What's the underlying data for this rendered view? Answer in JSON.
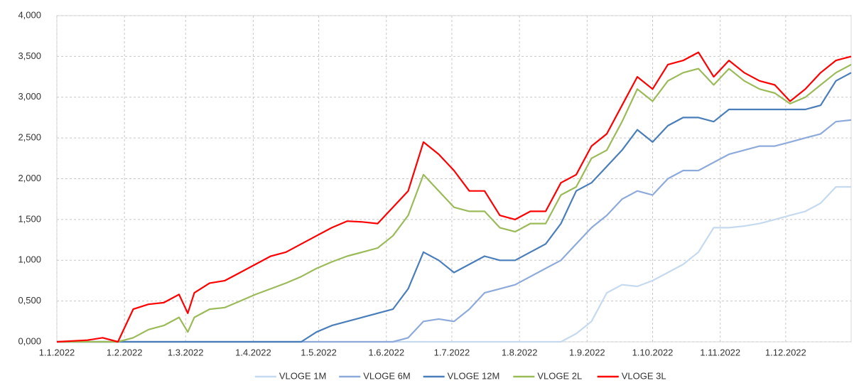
{
  "chart_data": {
    "type": "line",
    "x": [
      0,
      14,
      21,
      28,
      35,
      42,
      49,
      56,
      60,
      63,
      70,
      77,
      84,
      91,
      98,
      105,
      112,
      119,
      126,
      133,
      140,
      147,
      154,
      161,
      168,
      175,
      182,
      189,
      196,
      203,
      210,
      217,
      224,
      231,
      238,
      245,
      252,
      259,
      266,
      273,
      280,
      287,
      294,
      301,
      308,
      315,
      322,
      329,
      336,
      343,
      350,
      357,
      364
    ],
    "xlim": [
      0,
      364
    ],
    "xticks": [
      {
        "value": 0,
        "label": "1.1.2022"
      },
      {
        "value": 31,
        "label": "1.2.2022"
      },
      {
        "value": 59,
        "label": "1.3.2022"
      },
      {
        "value": 90,
        "label": "1.4.2022"
      },
      {
        "value": 120,
        "label": "1.5.2022"
      },
      {
        "value": 151,
        "label": "1.6.2022"
      },
      {
        "value": 181,
        "label": "1.7.2022"
      },
      {
        "value": 212,
        "label": "1.8.2022"
      },
      {
        "value": 243,
        "label": "1.9.2022"
      },
      {
        "value": 273,
        "label": "1.10.2022"
      },
      {
        "value": 304,
        "label": "1.11.2022"
      },
      {
        "value": 334,
        "label": "1.12.2022"
      }
    ],
    "ylim": [
      0,
      4
    ],
    "yticks": [
      {
        "value": 0,
        "label": "0,000"
      },
      {
        "value": 0.5,
        "label": "0,500"
      },
      {
        "value": 1,
        "label": "1,000"
      },
      {
        "value": 1.5,
        "label": "1,500"
      },
      {
        "value": 2,
        "label": "2,000"
      },
      {
        "value": 2.5,
        "label": "2,500"
      },
      {
        "value": 3,
        "label": "3,000"
      },
      {
        "value": 3.5,
        "label": "3,500"
      },
      {
        "value": 4,
        "label": "4,000"
      }
    ],
    "grid": true,
    "legend": "bottom",
    "series": [
      {
        "name": "VLOGE 1M",
        "color": "#c5d9ef",
        "values": [
          0,
          0,
          0,
          0,
          0,
          0,
          0,
          0,
          0,
          0,
          0,
          0,
          0,
          0,
          0,
          0,
          0,
          0,
          0,
          0,
          0,
          0,
          0,
          0,
          0,
          0,
          0,
          0,
          0,
          0,
          0,
          0,
          0,
          0,
          0.1,
          0.25,
          0.6,
          0.7,
          0.68,
          0.75,
          0.85,
          0.95,
          1.1,
          1.4,
          1.4,
          1.42,
          1.45,
          1.5,
          1.55,
          1.6,
          1.7,
          1.9,
          1.9
        ]
      },
      {
        "name": "VLOGE 6M",
        "color": "#8eaadb",
        "values": [
          0,
          0,
          0,
          0,
          0,
          0,
          0,
          0,
          0,
          0,
          0,
          0,
          0,
          0,
          0,
          0,
          0,
          0,
          0,
          0,
          0,
          0,
          0,
          0.05,
          0.25,
          0.28,
          0.25,
          0.4,
          0.6,
          0.65,
          0.7,
          0.8,
          0.9,
          1.0,
          1.2,
          1.4,
          1.55,
          1.75,
          1.85,
          1.8,
          2.0,
          2.1,
          2.1,
          2.2,
          2.3,
          2.35,
          2.4,
          2.4,
          2.45,
          2.5,
          2.55,
          2.7,
          2.72
        ]
      },
      {
        "name": "VLOGE 12M",
        "color": "#4a7ebb",
        "values": [
          0,
          0,
          0,
          0,
          0,
          0,
          0,
          0,
          0,
          0,
          0,
          0,
          0,
          0,
          0,
          0,
          0,
          0.12,
          0.2,
          0.25,
          0.3,
          0.35,
          0.4,
          0.65,
          1.1,
          1.0,
          0.85,
          0.95,
          1.05,
          1.0,
          1.0,
          1.1,
          1.2,
          1.45,
          1.85,
          1.95,
          2.15,
          2.35,
          2.6,
          2.45,
          2.65,
          2.75,
          2.75,
          2.7,
          2.85,
          2.85,
          2.85,
          2.85,
          2.85,
          2.85,
          2.9,
          3.2,
          3.3
        ]
      },
      {
        "name": "VLOGE 2L",
        "color": "#9bbb59",
        "values": [
          0,
          0,
          0,
          0,
          0.05,
          0.15,
          0.2,
          0.3,
          0.12,
          0.3,
          0.4,
          0.42,
          0.5,
          0.58,
          0.65,
          0.72,
          0.8,
          0.9,
          0.98,
          1.05,
          1.1,
          1.15,
          1.3,
          1.55,
          2.05,
          1.85,
          1.65,
          1.6,
          1.6,
          1.4,
          1.35,
          1.45,
          1.45,
          1.8,
          1.9,
          2.25,
          2.35,
          2.7,
          3.1,
          2.95,
          3.2,
          3.3,
          3.35,
          3.15,
          3.35,
          3.2,
          3.1,
          3.05,
          2.92,
          3.0,
          3.15,
          3.3,
          3.4
        ]
      },
      {
        "name": "VLOGE 3L",
        "color": "#ff0000",
        "values": [
          0,
          0.02,
          0.05,
          0,
          0.4,
          0.46,
          0.48,
          0.58,
          0.35,
          0.6,
          0.72,
          0.75,
          0.85,
          0.95,
          1.05,
          1.1,
          1.2,
          1.3,
          1.4,
          1.48,
          1.47,
          1.45,
          1.65,
          1.85,
          2.45,
          2.3,
          2.1,
          1.85,
          1.85,
          1.55,
          1.5,
          1.6,
          1.6,
          1.95,
          2.05,
          2.4,
          2.55,
          2.9,
          3.25,
          3.1,
          3.4,
          3.45,
          3.55,
          3.25,
          3.45,
          3.3,
          3.2,
          3.15,
          2.95,
          3.1,
          3.3,
          3.45,
          3.5
        ]
      }
    ]
  }
}
